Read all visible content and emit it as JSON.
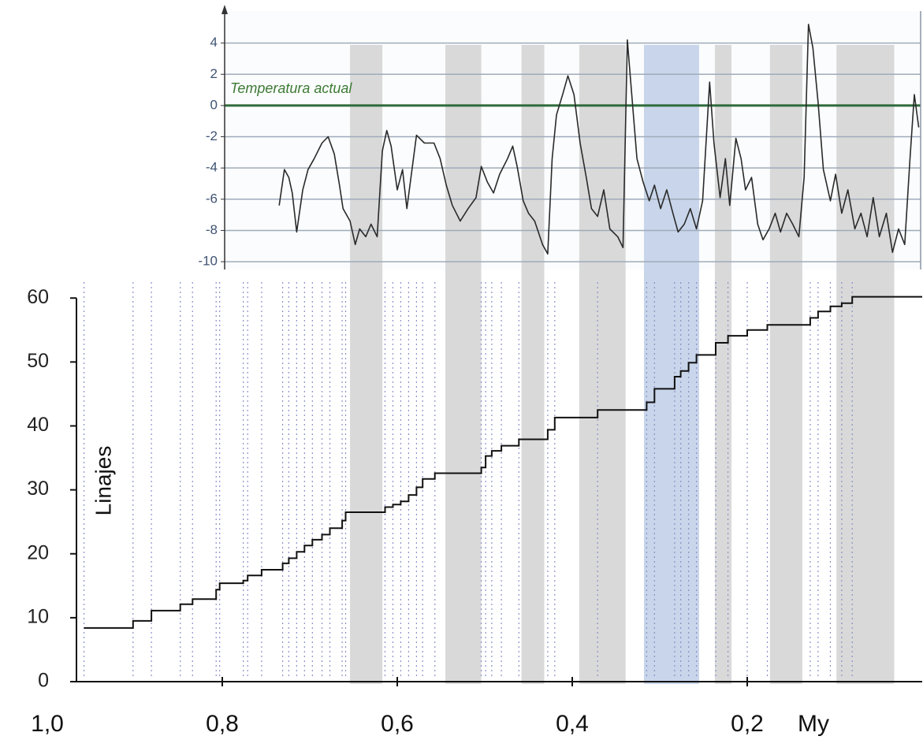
{
  "chart_data": [
    {
      "type": "line",
      "x": [
        0.735,
        0.729,
        0.724,
        0.72,
        0.715,
        0.708,
        0.702,
        0.695,
        0.686,
        0.679,
        0.672,
        0.666,
        0.662,
        0.654,
        0.648,
        0.643,
        0.636,
        0.63,
        0.623,
        0.617,
        0.612,
        0.607,
        0.6,
        0.594,
        0.589,
        0.582,
        0.578,
        0.569,
        0.558,
        0.551,
        0.544,
        0.537,
        0.528,
        0.519,
        0.51,
        0.504,
        0.497,
        0.49,
        0.483,
        0.474,
        0.468,
        0.463,
        0.456,
        0.45,
        0.443,
        0.434,
        0.428,
        0.423,
        0.418,
        0.411,
        0.405,
        0.398,
        0.391,
        0.384,
        0.378,
        0.371,
        0.364,
        0.357,
        0.348,
        0.342,
        0.337,
        0.332,
        0.326,
        0.319,
        0.312,
        0.306,
        0.299,
        0.292,
        0.285,
        0.279,
        0.272,
        0.265,
        0.258,
        0.251,
        0.243,
        0.238,
        0.231,
        0.225,
        0.22,
        0.213,
        0.207,
        0.202,
        0.195,
        0.188,
        0.182,
        0.175,
        0.168,
        0.162,
        0.155,
        0.148,
        0.141,
        0.135,
        0.13,
        0.125,
        0.119,
        0.113,
        0.105,
        0.099,
        0.092,
        0.085,
        0.077,
        0.07,
        0.063,
        0.056,
        0.049,
        0.041,
        0.034,
        0.027,
        0.02,
        0.014,
        0.009,
        0.004
      ],
      "values": [
        -6.4,
        -4.1,
        -4.6,
        -5.6,
        -8.1,
        -5.4,
        -4.1,
        -3.4,
        -2.4,
        -2.0,
        -3.1,
        -5.1,
        -6.6,
        -7.4,
        -8.9,
        -7.9,
        -8.4,
        -7.6,
        -8.4,
        -2.9,
        -1.6,
        -2.6,
        -5.4,
        -4.1,
        -6.6,
        -3.6,
        -1.9,
        -2.4,
        -2.4,
        -3.4,
        -5.1,
        -6.4,
        -7.4,
        -6.6,
        -5.9,
        -3.9,
        -4.9,
        -5.6,
        -4.4,
        -3.4,
        -2.6,
        -3.9,
        -6.1,
        -6.9,
        -7.4,
        -8.9,
        -9.5,
        -3.4,
        -0.6,
        0.7,
        1.9,
        0.7,
        -2.4,
        -4.6,
        -6.6,
        -7.1,
        -5.4,
        -7.9,
        -8.4,
        -9.1,
        4.2,
        0.7,
        -3.4,
        -4.9,
        -6.1,
        -5.1,
        -6.6,
        -5.4,
        -6.9,
        -8.1,
        -7.6,
        -6.6,
        -7.9,
        -6.1,
        1.5,
        -2.4,
        -5.9,
        -3.4,
        -6.4,
        -2.1,
        -3.4,
        -5.4,
        -4.6,
        -7.6,
        -8.6,
        -7.9,
        -6.9,
        -8.1,
        -6.9,
        -7.6,
        -8.4,
        -4.6,
        5.2,
        3.7,
        0.2,
        -4.1,
        -6.1,
        -4.4,
        -6.9,
        -5.4,
        -7.9,
        -6.9,
        -8.4,
        -5.9,
        -8.4,
        -6.9,
        -9.4,
        -7.9,
        -8.9,
        -3.4,
        0.7,
        -1.4
      ],
      "color": "#2a2a2a",
      "xlim": [
        0.8,
        0
      ],
      "ylim": [
        -10.4,
        6
      ],
      "yticks": [
        4,
        2,
        0,
        -2,
        -4,
        -6,
        -8,
        -10
      ],
      "grid": true,
      "reference_line": {
        "value": 0,
        "label": "Temperatura actual",
        "color": "#2f6b3b"
      },
      "shaded_periods": [
        {
          "start": 0.654,
          "end": 0.617,
          "color": "#d9d9d9"
        },
        {
          "start": 0.545,
          "end": 0.504,
          "color": "#d9d9d9"
        },
        {
          "start": 0.458,
          "end": 0.432,
          "color": "#d9d9d9"
        },
        {
          "start": 0.392,
          "end": 0.339,
          "color": "#d9d9d9"
        },
        {
          "start": 0.318,
          "end": 0.255,
          "color": "#c8d5ea"
        },
        {
          "start": 0.237,
          "end": 0.218,
          "color": "#d9d9d9"
        },
        {
          "start": 0.174,
          "end": 0.137,
          "color": "#d9d9d9"
        },
        {
          "start": 0.098,
          "end": 0.032,
          "color": "#d9d9d9"
        }
      ]
    },
    {
      "type": "step",
      "x": [
        0.958,
        0.902,
        0.881,
        0.848,
        0.834,
        0.807,
        0.803,
        0.776,
        0.771,
        0.755,
        0.731,
        0.724,
        0.715,
        0.706,
        0.697,
        0.686,
        0.677,
        0.663,
        0.659,
        0.614,
        0.605,
        0.596,
        0.587,
        0.578,
        0.571,
        0.557,
        0.504,
        0.499,
        0.492,
        0.481,
        0.461,
        0.428,
        0.42,
        0.371,
        0.315,
        0.306,
        0.283,
        0.276,
        0.267,
        0.258,
        0.236,
        0.222,
        0.2,
        0.177,
        0.128,
        0.119,
        0.105,
        0.092,
        0.08
      ],
      "values": [
        8.4,
        9.5,
        11.1,
        12.1,
        12.9,
        14.4,
        15.4,
        15.8,
        16.6,
        17.5,
        18.5,
        19.3,
        20.3,
        21.3,
        22.2,
        23.0,
        24.0,
        25.2,
        26.5,
        27.3,
        27.7,
        28.2,
        29.2,
        30.4,
        31.7,
        32.6,
        33.5,
        35.3,
        36.1,
        36.9,
        37.9,
        39.4,
        41.3,
        42.5,
        43.7,
        45.8,
        47.7,
        48.6,
        49.9,
        51.1,
        53.0,
        54.1,
        55.0,
        55.8,
        56.9,
        57.9,
        58.7,
        59.2,
        60.2
      ],
      "color": "#111111",
      "xlim": [
        1.0,
        0
      ],
      "ylim": [
        0,
        62
      ],
      "xticks": [
        {
          "value": 1.0,
          "label": "1,0"
        },
        {
          "value": 0.8,
          "label": "0,8"
        },
        {
          "value": 0.6,
          "label": "0,6"
        },
        {
          "value": 0.4,
          "label": "0,4"
        },
        {
          "value": 0.2,
          "label": "0,2"
        }
      ],
      "yticks": [
        0,
        10,
        20,
        30,
        40,
        50,
        60
      ],
      "x_label": "My",
      "y_label": "Linajes",
      "event_lines": true,
      "event_color": "#8b90c9"
    }
  ]
}
